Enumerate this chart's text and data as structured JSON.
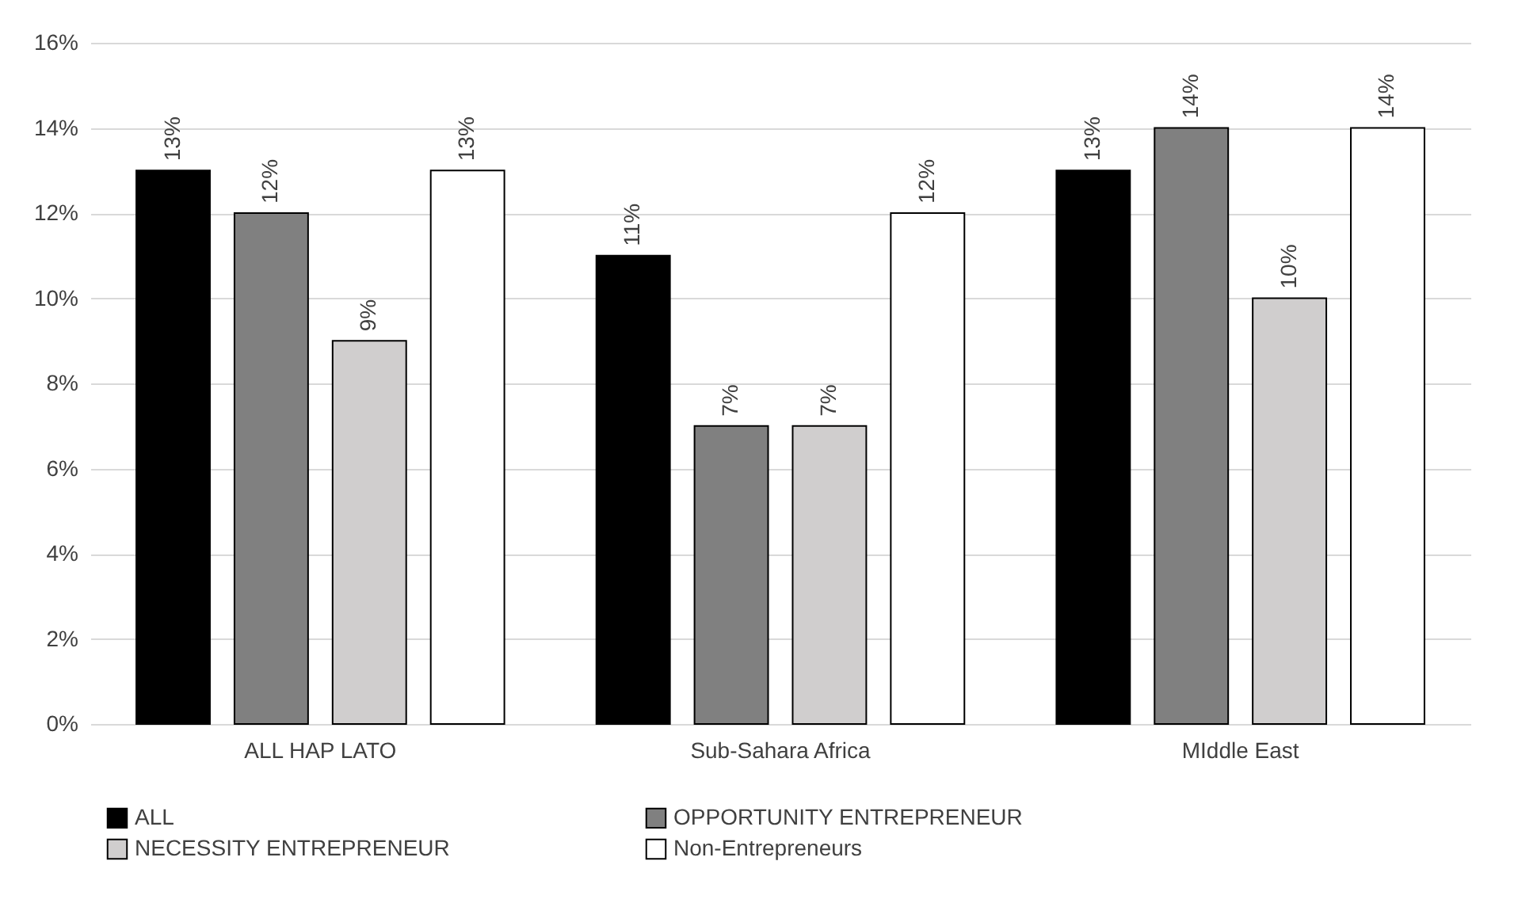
{
  "chart_data": {
    "type": "bar",
    "categories": [
      "ALL HAP LATO",
      "Sub-Sahara Africa",
      "MIddle East"
    ],
    "series": [
      {
        "name": "ALL",
        "color": "#000000",
        "values": [
          13,
          11,
          13
        ],
        "value_labels": [
          "13%",
          "11%",
          "13%"
        ]
      },
      {
        "name": "OPPORTUNITY ENTREPRENEUR",
        "color": "#808080",
        "values": [
          12,
          7,
          14
        ],
        "value_labels": [
          "12%",
          "7%",
          "14%"
        ]
      },
      {
        "name": "NECESSITY ENTREPRENEUR",
        "color": "#d0cece",
        "values": [
          9,
          7,
          10
        ],
        "value_labels": [
          "9%",
          "7%",
          "10%"
        ]
      },
      {
        "name": "Non-Entrepreneurs",
        "color": "#ffffff",
        "values": [
          13,
          12,
          14
        ],
        "value_labels": [
          "13%",
          "12%",
          "14%"
        ]
      }
    ],
    "ylim": [
      0,
      16
    ],
    "yticks": [
      {
        "value": 0,
        "label": "0%"
      },
      {
        "value": 2,
        "label": "2%"
      },
      {
        "value": 4,
        "label": "4%"
      },
      {
        "value": 6,
        "label": "6%"
      },
      {
        "value": 8,
        "label": "8%"
      },
      {
        "value": 10,
        "label": "10%"
      },
      {
        "value": 12,
        "label": "12%"
      },
      {
        "value": 14,
        "label": "14%"
      },
      {
        "value": 16,
        "label": "16%"
      }
    ],
    "grid": "y",
    "legend": "bottom"
  }
}
